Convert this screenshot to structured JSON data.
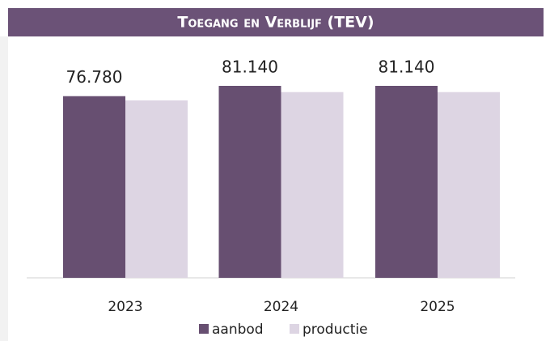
{
  "chart_data": {
    "type": "bar",
    "title": "Toegang en Verblijf (TEV)",
    "categories": [
      "2023",
      "2024",
      "2025"
    ],
    "series": [
      {
        "name": "aanbod",
        "color": "#674f71",
        "values": [
          76780,
          81140,
          81140
        ],
        "value_labels": [
          "76.780",
          "81.140",
          "81.140"
        ]
      },
      {
        "name": "productie",
        "color": "#ddd5e3",
        "values": [
          75000,
          78500,
          78500
        ]
      }
    ],
    "legend": "bottom"
  }
}
